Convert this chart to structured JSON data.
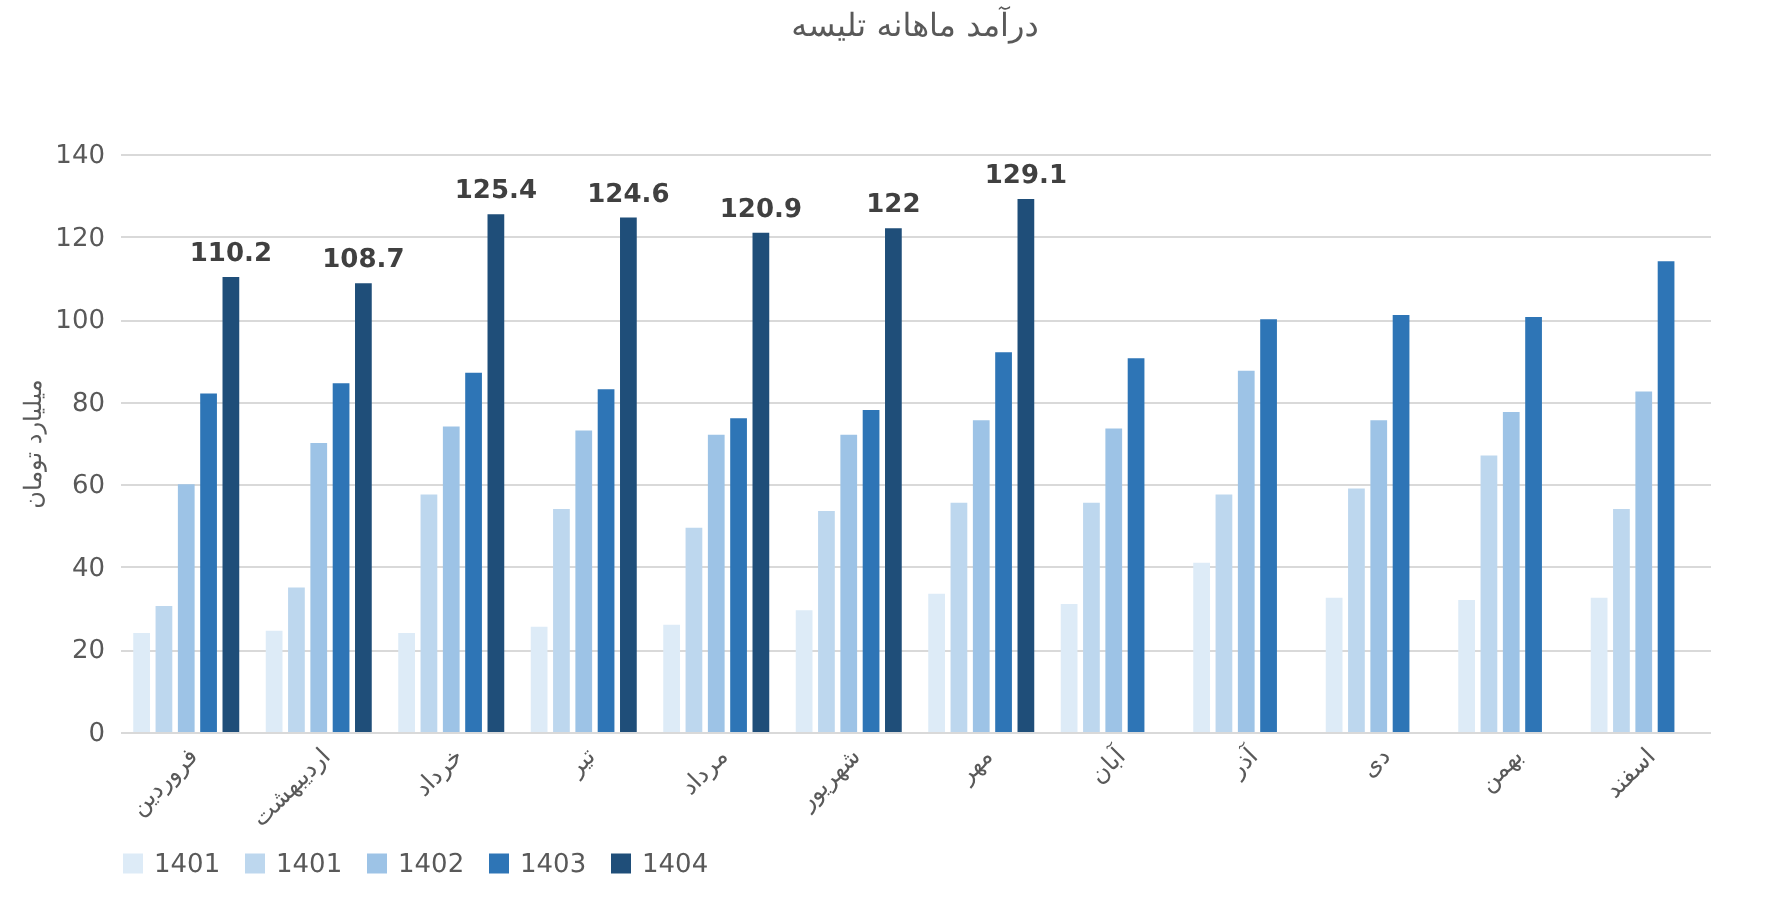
{
  "chart_data": {
    "type": "bar",
    "title": "درآمد ماهانه تلیسه",
    "ylabel": "میلیارد تومان",
    "categories": [
      "فروردین",
      "اردیبهشت",
      "خرداد",
      "تیر",
      "مرداد",
      "شهریور",
      "مهر",
      "آبان",
      "آذر",
      "دی",
      "بهمن",
      "اسفند"
    ],
    "series": [
      {
        "name": "1401",
        "color": "#ddebf7",
        "values": [
          24,
          24.5,
          24,
          25.5,
          26,
          29.5,
          33.5,
          31,
          41,
          32.5,
          32,
          32.5
        ]
      },
      {
        "name": "1401",
        "color": "#bdd7ee",
        "values": [
          30.5,
          35,
          57.5,
          54,
          49.5,
          53.5,
          55.5,
          55.5,
          57.5,
          59,
          67,
          54
        ]
      },
      {
        "name": "1402",
        "color": "#9dc3e6",
        "values": [
          60,
          70,
          74,
          73,
          72,
          72,
          75.5,
          73.5,
          87.5,
          75.5,
          77.5,
          82.5
        ]
      },
      {
        "name": "1403",
        "color": "#2e75b6",
        "values": [
          82,
          84.5,
          87,
          83,
          76,
          78,
          92,
          90.5,
          100,
          101,
          100.5,
          114
        ]
      },
      {
        "name": "1404",
        "color": "#1f4e79",
        "values": [
          110.2,
          108.7,
          125.4,
          124.6,
          120.9,
          122,
          129.1,
          null,
          null,
          null,
          null,
          null
        ],
        "value_labels": [
          "110.2",
          "108.7",
          "125.4",
          "124.6",
          "120.9",
          "122",
          "129.1",
          null,
          null,
          null,
          null,
          null
        ]
      }
    ],
    "ylim": [
      0,
      140
    ],
    "yticks": [
      0,
      20,
      40,
      60,
      80,
      100,
      120,
      140
    ],
    "grid": "y",
    "legend": "bottom"
  }
}
